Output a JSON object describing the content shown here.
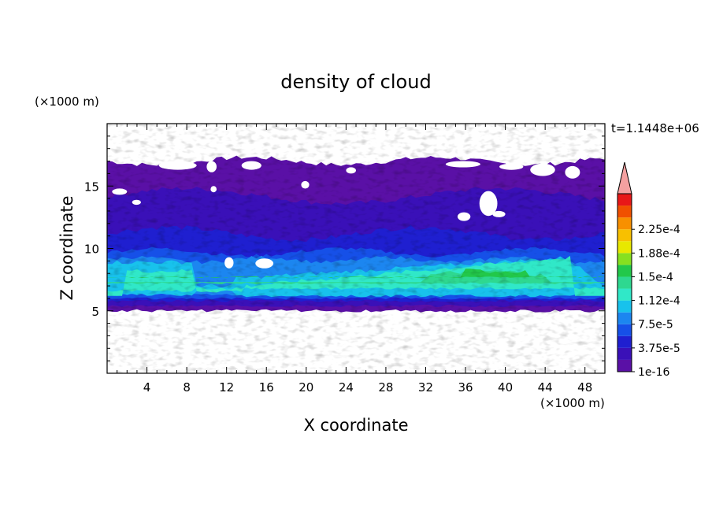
{
  "chart_data": {
    "type": "heatmap",
    "title": "density of cloud",
    "xlabel": "X coordinate",
    "ylabel": "Z coordinate",
    "x_unit": "(×1000 m)",
    "y_unit": "(×1000 m)",
    "time_label": "t=1.1448e+06",
    "xlim": [
      0,
      50
    ],
    "ylim": [
      0,
      20
    ],
    "x_ticks": [
      4,
      8,
      12,
      16,
      20,
      24,
      28,
      32,
      36,
      40,
      44,
      48
    ],
    "y_ticks": [
      5,
      10,
      15
    ],
    "colorbar": {
      "labels": [
        "1e-16",
        "3.75e-5",
        "7.5e-5",
        "1.12e-4",
        "1.5e-4",
        "1.88e-4",
        "2.25e-4"
      ],
      "colors": [
        "#5a10a6",
        "#3a10b8",
        "#1f1fd0",
        "#1650e8",
        "#1c86f0",
        "#18c2ec",
        "#30e8c8",
        "#2ed890",
        "#22c84a",
        "#86e020",
        "#e8e800",
        "#f8c000",
        "#f89000",
        "#f05000",
        "#e81818"
      ],
      "extend_color": "#f4a0a0"
    },
    "layers": {
      "cloud_base_km": 5.0,
      "cloud_top_km": 17.0,
      "high_density_band_km": [
        6,
        9
      ]
    }
  }
}
